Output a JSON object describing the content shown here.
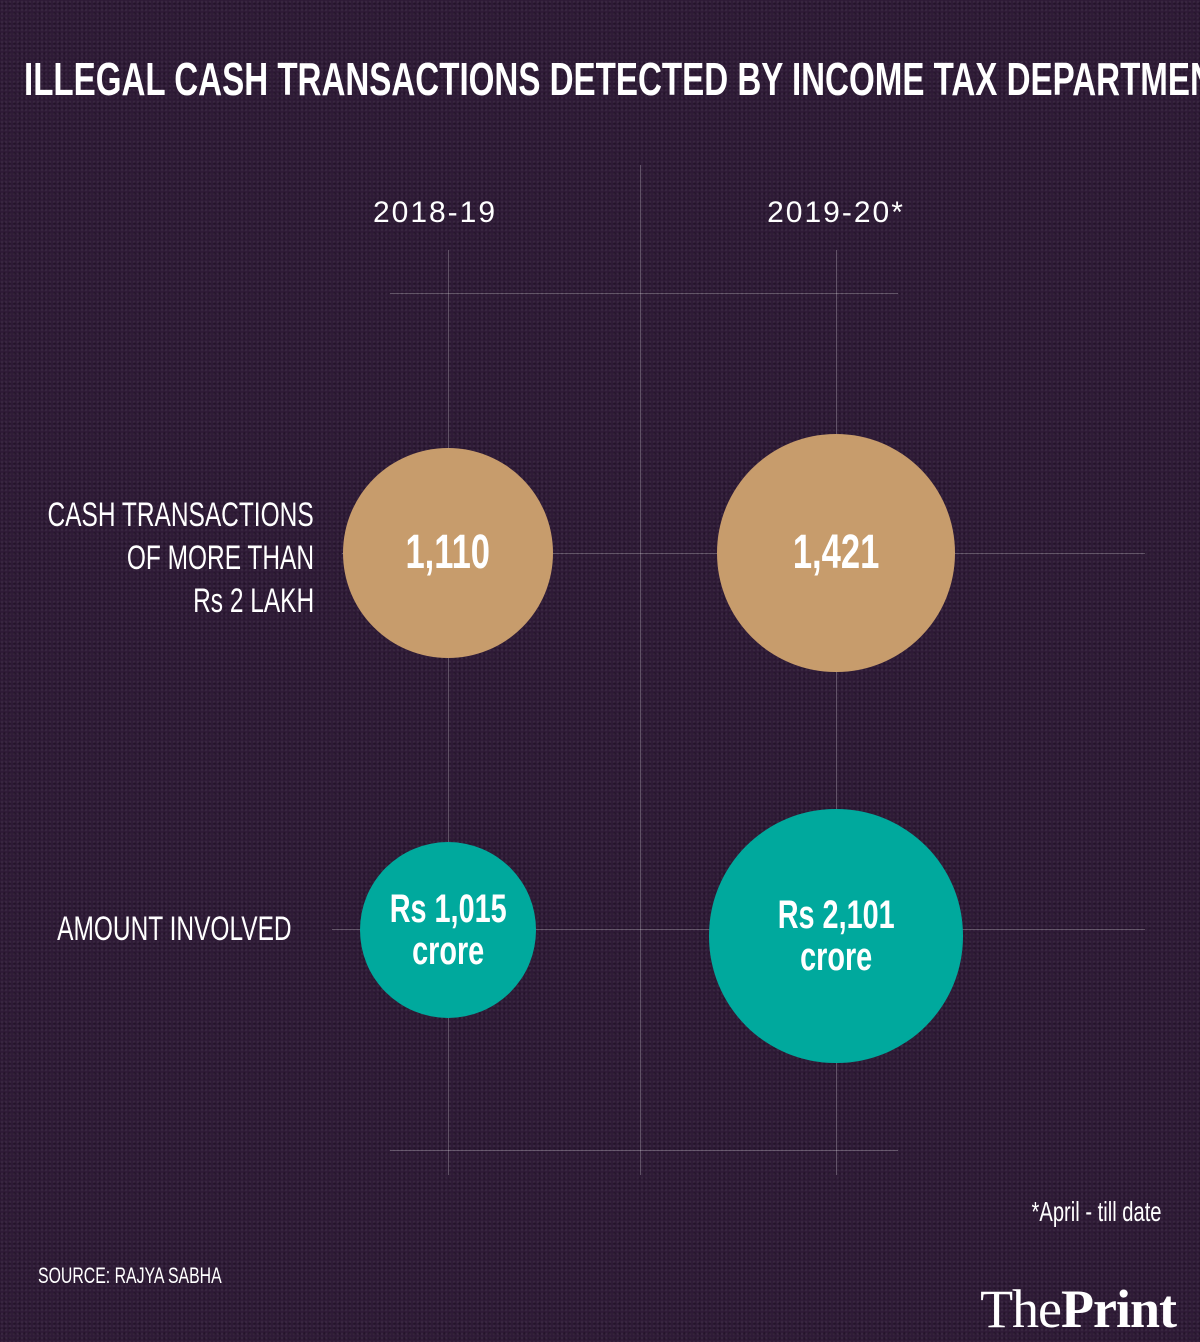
{
  "chart_data": {
    "type": "bubble",
    "title": "ILLEGAL CASH TRANSACTIONS DETECTED BY INCOME TAX DEPARTMENT",
    "categories": [
      "2018-19",
      "2019-20*"
    ],
    "series": [
      {
        "name": "CASH TRANSACTIONS OF MORE THAN Rs 2 LAKH",
        "label_lines": [
          "CASH TRANSACTIONS",
          "OF MORE THAN",
          "Rs 2 LAKH"
        ],
        "values": [
          1110,
          1421
        ],
        "labels": [
          "1,110",
          "1,421"
        ],
        "color": "#c79c6c"
      },
      {
        "name": "AMOUNT INVOLVED",
        "label_lines": [
          "AMOUNT INVOLVED"
        ],
        "values": [
          1015,
          2101
        ],
        "labels": [
          [
            "Rs 1,015",
            "crore"
          ],
          [
            "Rs 2,101",
            "crore"
          ]
        ],
        "unit": "Rs crore",
        "color": "#00a99d"
      }
    ],
    "note": "*April - till date",
    "source": "SOURCE: RAJYA SABHA"
  },
  "colors": {
    "background": "#2e1a36",
    "text": "#ffffff"
  },
  "brand": {
    "logo_light": "The",
    "logo_bold": "Print"
  }
}
